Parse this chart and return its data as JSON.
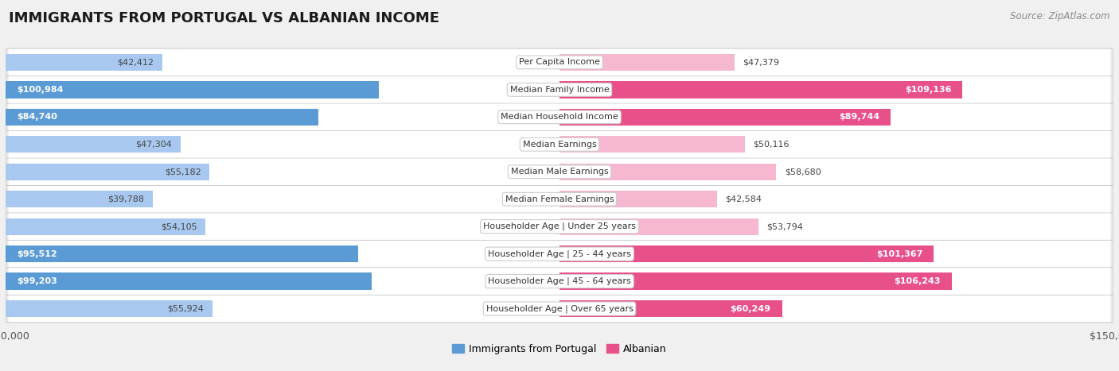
{
  "title": "IMMIGRANTS FROM PORTUGAL VS ALBANIAN INCOME",
  "source": "Source: ZipAtlas.com",
  "categories": [
    "Per Capita Income",
    "Median Family Income",
    "Median Household Income",
    "Median Earnings",
    "Median Male Earnings",
    "Median Female Earnings",
    "Householder Age | Under 25 years",
    "Householder Age | 25 - 44 years",
    "Householder Age | 45 - 64 years",
    "Householder Age | Over 65 years"
  ],
  "portugal_values": [
    42412,
    100984,
    84740,
    47304,
    55182,
    39788,
    54105,
    95512,
    99203,
    55924
  ],
  "albanian_values": [
    47379,
    109136,
    89744,
    50116,
    58680,
    42584,
    53794,
    101367,
    106243,
    60249
  ],
  "portugal_labels": [
    "$42,412",
    "$100,984",
    "$84,740",
    "$47,304",
    "$55,182",
    "$39,788",
    "$54,105",
    "$95,512",
    "$99,203",
    "$55,924"
  ],
  "albanian_labels": [
    "$47,379",
    "$109,136",
    "$89,744",
    "$50,116",
    "$58,680",
    "$42,584",
    "$53,794",
    "$101,367",
    "$106,243",
    "$60,249"
  ],
  "portugal_color_light": "#a8c8f0",
  "portugal_color_dark": "#5b9bd5",
  "albanian_color_light": "#f5b8d0",
  "albanian_color_dark": "#e8508a",
  "portugal_inside_threshold": 60000,
  "albanian_inside_threshold": 60000,
  "label_color_inside": "#ffffff",
  "label_color_outside": "#444444",
  "max_value": 150000,
  "bar_height": 0.62,
  "background_color": "#f0f0f0",
  "row_bg_color": "#ffffff",
  "legend_portugal": "Immigrants from Portugal",
  "legend_albanian": "Albanian"
}
